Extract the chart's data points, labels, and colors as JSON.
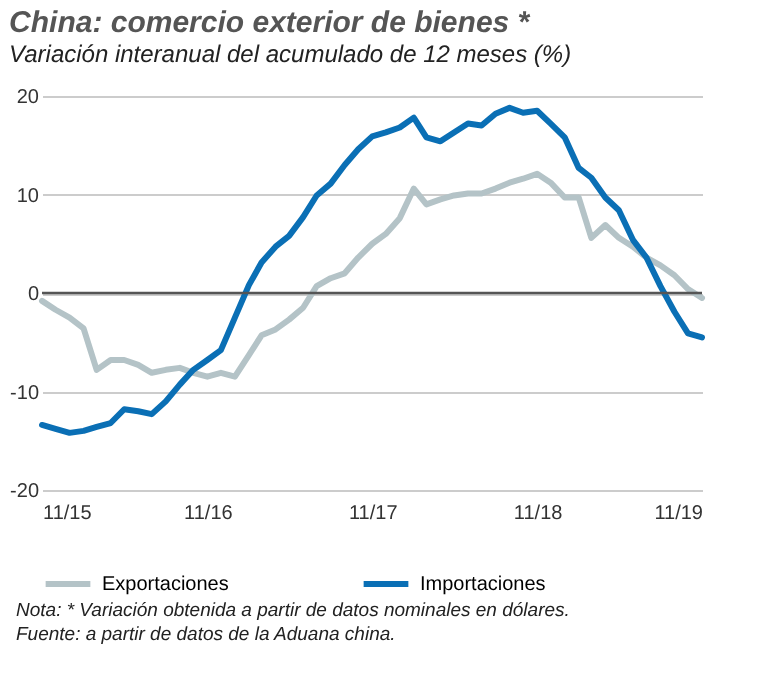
{
  "chart_data": {
    "type": "line",
    "title": "China: comercio exterior de bienes *",
    "subtitle": "Variación interanual del acumulado de 12 meses (%)",
    "x": [
      "2015-11",
      "2015-12",
      "2016-01",
      "2016-02",
      "2016-03",
      "2016-04",
      "2016-05",
      "2016-06",
      "2016-07",
      "2016-08",
      "2016-09",
      "2016-10",
      "2016-11",
      "2016-12",
      "2017-01",
      "2017-02",
      "2017-03",
      "2017-04",
      "2017-05",
      "2017-06",
      "2017-07",
      "2017-08",
      "2017-09",
      "2017-10",
      "2017-11",
      "2017-12",
      "2018-01",
      "2018-02",
      "2018-03",
      "2018-04",
      "2018-05",
      "2018-06",
      "2018-07",
      "2018-08",
      "2018-09",
      "2018-10",
      "2018-11",
      "2018-12",
      "2019-01",
      "2019-02",
      "2019-03",
      "2019-04",
      "2019-05",
      "2019-06",
      "2019-07",
      "2019-08",
      "2019-09",
      "2019-10",
      "2019-11"
    ],
    "series": [
      {
        "name": "Exportaciones",
        "color": "#b4c3c7",
        "values": [
          -0.8,
          -1.7,
          -2.5,
          -3.6,
          -7.8,
          -6.8,
          -6.8,
          -7.3,
          -8.1,
          -7.8,
          -7.6,
          -8.1,
          -8.5,
          -8.1,
          -8.5,
          -6.3,
          -4.3,
          -3.7,
          -2.7,
          -1.5,
          0.7,
          1.5,
          2.0,
          3.6,
          5.0,
          6.0,
          7.6,
          10.6,
          9.0,
          9.5,
          9.9,
          10.1,
          10.1,
          10.6,
          11.2,
          11.6,
          12.1,
          11.2,
          9.7,
          9.7,
          5.6,
          6.9,
          5.6,
          4.7,
          3.6,
          2.8,
          1.8,
          0.4,
          -0.5
        ]
      },
      {
        "name": "Importaciones",
        "color": "#0a6fb5",
        "values": [
          -13.4,
          -13.8,
          -14.2,
          -14.0,
          -13.6,
          -13.2,
          -11.8,
          -12.0,
          -12.3,
          -11.0,
          -9.3,
          -7.8,
          -6.8,
          -5.8,
          -2.5,
          0.8,
          3.1,
          4.7,
          5.8,
          7.7,
          9.9,
          11.1,
          13.0,
          14.6,
          15.9,
          16.3,
          16.8,
          17.8,
          15.8,
          15.4,
          16.3,
          17.2,
          17.0,
          18.2,
          18.8,
          18.3,
          18.5,
          17.2,
          15.8,
          12.7,
          11.7,
          9.7,
          8.4,
          5.4,
          3.6,
          0.7,
          -1.9,
          -4.1,
          -4.5
        ]
      }
    ],
    "xlim": [
      "2015-11",
      "2019-11"
    ],
    "xticks": [
      {
        "value": "2015-11",
        "label": "11/15"
      },
      {
        "value": "2016-11",
        "label": "11/16"
      },
      {
        "value": "2017-11",
        "label": "11/17"
      },
      {
        "value": "2018-11",
        "label": "11/18"
      },
      {
        "value": "2019-11",
        "label": "11/19"
      }
    ],
    "ylim": [
      -20,
      20
    ],
    "yticks": [
      -20,
      -10,
      0,
      10,
      20
    ],
    "ref_lines": [
      {
        "axis": "y",
        "value": 0,
        "color": "#555555"
      }
    ],
    "grid": "y",
    "legend": "bottom",
    "line_style": "solid",
    "annotations": [
      "Nota: * Variación obtenida a partir de datos nominales en dólares.",
      "Fuente: a partir de datos de la Aduana china."
    ]
  }
}
